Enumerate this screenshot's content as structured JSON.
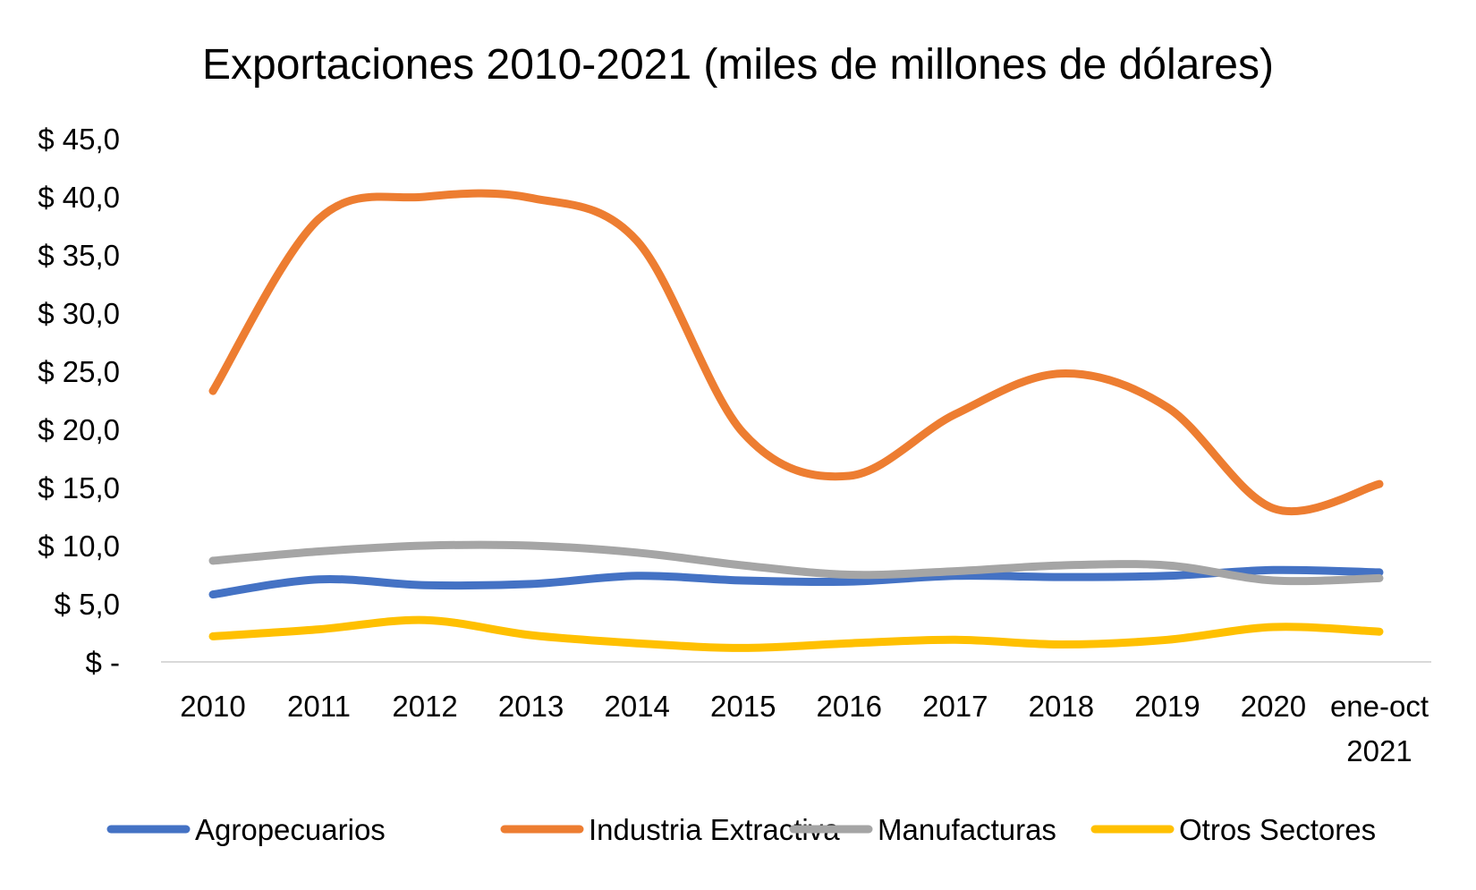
{
  "chart_data": {
    "type": "line",
    "title": "Exportaciones 2010-2021 (miles de millones de dólares)",
    "xlabel": "",
    "ylabel": "",
    "categories": [
      "2010",
      "2011",
      "2012",
      "2013",
      "2014",
      "2015",
      "2016",
      "2017",
      "2018",
      "2019",
      "2020",
      "ene-oct 2021"
    ],
    "ylim": [
      0,
      45
    ],
    "yticks": [
      0,
      5,
      10,
      15,
      20,
      25,
      30,
      35,
      40,
      45
    ],
    "ytick_labels": [
      "$ -",
      "$ 5,0",
      "$ 10,0",
      "$ 15,0",
      "$ 20,0",
      "$ 25,0",
      "$ 30,0",
      "$ 35,0",
      "$ 40,0",
      "$ 45,0"
    ],
    "grid": false,
    "smooth": true,
    "legend_position": "bottom",
    "series": [
      {
        "name": "Agropecuarios",
        "color": "#4472C4",
        "values": [
          5.8,
          7.1,
          6.6,
          6.7,
          7.4,
          7.0,
          6.9,
          7.4,
          7.3,
          7.4,
          7.9,
          7.7
        ]
      },
      {
        "name": "Industria Extractiva",
        "color": "#ED7D31",
        "values": [
          23.3,
          38.1,
          40.0,
          39.9,
          36.2,
          19.7,
          16.0,
          21.3,
          24.8,
          21.9,
          13.2,
          15.3
        ]
      },
      {
        "name": "Manufacturas",
        "color": "#A5A5A5",
        "values": [
          8.7,
          9.5,
          10.0,
          10.0,
          9.4,
          8.3,
          7.5,
          7.8,
          8.3,
          8.3,
          7.0,
          7.2
        ]
      },
      {
        "name": "Otros Sectores",
        "color": "#FFC000",
        "values": [
          2.2,
          2.8,
          3.6,
          2.3,
          1.6,
          1.2,
          1.6,
          1.9,
          1.5,
          1.9,
          3.0,
          2.6
        ]
      }
    ]
  }
}
